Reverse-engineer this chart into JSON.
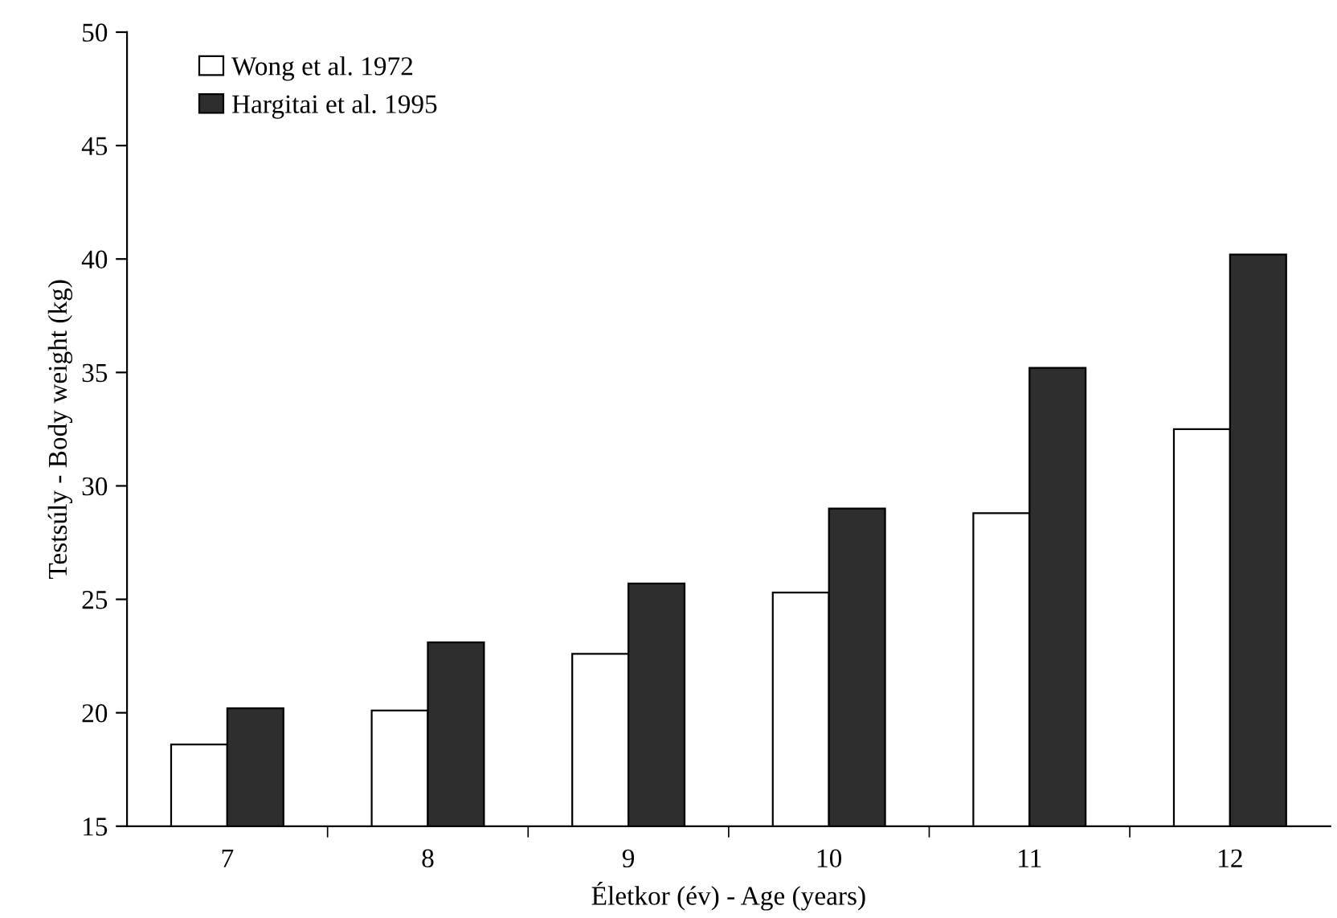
{
  "chart_data": {
    "type": "bar",
    "xlabel": "Életkor (év) - Age (years)",
    "ylabel": "Testsúly - Body weight (kg)",
    "categories": [
      "7",
      "8",
      "9",
      "10",
      "11",
      "12"
    ],
    "series": [
      {
        "name": "Wong et al. 1972",
        "color": "#ffffff",
        "values": [
          18.6,
          20.1,
          22.6,
          25.3,
          28.8,
          32.5
        ]
      },
      {
        "name": "Hargitai et al. 1995",
        "color": "#2e2e2e",
        "values": [
          20.2,
          23.1,
          25.7,
          29.0,
          35.2,
          40.2
        ]
      }
    ],
    "ylim": [
      15,
      50
    ],
    "yticks": [
      15,
      20,
      25,
      30,
      35,
      40,
      45,
      50
    ],
    "grid": false,
    "legend": "top left"
  }
}
